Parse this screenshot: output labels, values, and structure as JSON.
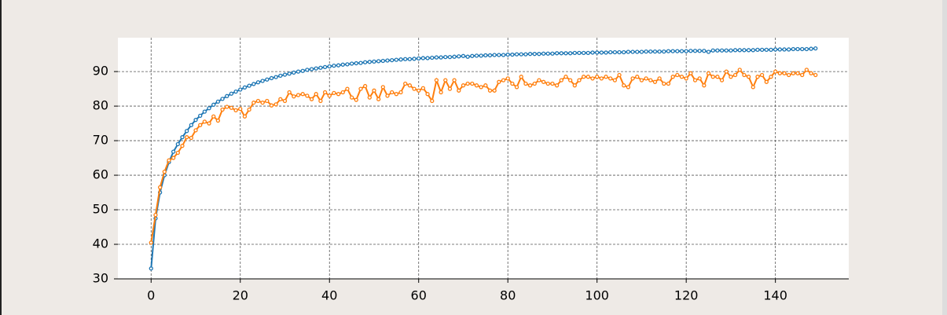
{
  "chart_data": {
    "type": "line",
    "x": [
      0,
      1,
      2,
      3,
      4,
      5,
      6,
      7,
      8,
      9,
      10,
      11,
      12,
      13,
      14,
      15,
      16,
      17,
      18,
      19,
      20,
      21,
      22,
      23,
      24,
      25,
      26,
      27,
      28,
      29,
      30,
      31,
      32,
      33,
      34,
      35,
      36,
      37,
      38,
      39,
      40,
      41,
      42,
      43,
      44,
      45,
      46,
      47,
      48,
      49,
      50,
      51,
      52,
      53,
      54,
      55,
      56,
      57,
      58,
      59,
      60,
      61,
      62,
      63,
      64,
      65,
      66,
      67,
      68,
      69,
      70,
      71,
      72,
      73,
      74,
      75,
      76,
      77,
      78,
      79,
      80,
      81,
      82,
      83,
      84,
      85,
      86,
      87,
      88,
      89,
      90,
      91,
      92,
      93,
      94,
      95,
      96,
      97,
      98,
      99,
      100,
      101,
      102,
      103,
      104,
      105,
      106,
      107,
      108,
      109,
      110,
      111,
      112,
      113,
      114,
      115,
      116,
      117,
      118,
      119,
      120,
      121,
      122,
      123,
      124,
      125,
      126,
      127,
      128,
      129,
      130,
      131,
      132,
      133,
      134,
      135,
      136,
      137,
      138,
      139,
      140,
      141,
      142,
      143,
      144,
      145,
      146,
      147,
      148,
      149
    ],
    "series": [
      {
        "color": "#1f77b4",
        "values": [
          33.0,
          47.5,
          55.0,
          60.0,
          63.8,
          66.8,
          69.0,
          71.0,
          72.8,
          74.5,
          76.0,
          77.2,
          78.4,
          79.4,
          80.4,
          81.3,
          82.1,
          82.9,
          83.6,
          84.2,
          84.8,
          85.4,
          85.9,
          86.4,
          86.9,
          87.3,
          87.7,
          88.1,
          88.4,
          88.8,
          89.1,
          89.4,
          89.7,
          90.0,
          90.2,
          90.5,
          90.7,
          90.9,
          91.1,
          91.3,
          91.5,
          91.7,
          91.8,
          92.0,
          92.1,
          92.3,
          92.4,
          92.5,
          92.7,
          92.8,
          92.9,
          93.0,
          93.1,
          93.2,
          93.3,
          93.4,
          93.5,
          93.6,
          93.6,
          93.7,
          93.8,
          93.9,
          93.9,
          94.0,
          94.1,
          94.1,
          94.2,
          94.2,
          94.3,
          94.4,
          94.5,
          94.3,
          94.5,
          94.6,
          94.6,
          94.7,
          94.7,
          94.8,
          94.8,
          94.8,
          94.9,
          94.9,
          95.0,
          95.0,
          95.0,
          95.1,
          95.1,
          95.1,
          95.2,
          95.2,
          95.2,
          95.3,
          95.3,
          95.3,
          95.3,
          95.4,
          95.4,
          95.4,
          95.4,
          95.5,
          95.5,
          95.5,
          95.5,
          95.6,
          95.6,
          95.6,
          95.6,
          95.7,
          95.7,
          95.7,
          95.7,
          95.8,
          95.8,
          95.8,
          95.8,
          95.8,
          95.9,
          95.9,
          95.9,
          95.9,
          95.9,
          96.0,
          96.0,
          96.0,
          96.0,
          95.7,
          96.1,
          96.1,
          96.1,
          96.1,
          96.1,
          96.2,
          96.2,
          96.2,
          96.2,
          96.2,
          96.3,
          96.3,
          96.3,
          96.3,
          96.4,
          96.4,
          96.4,
          96.4,
          96.5,
          96.5,
          96.5,
          96.5,
          96.6,
          96.7
        ]
      },
      {
        "color": "#ff7f0e",
        "values": [
          40.5,
          48.5,
          56.5,
          61,
          64.3,
          65,
          66.5,
          68.5,
          71,
          70.8,
          73,
          74.5,
          75.5,
          75,
          77,
          75.8,
          79,
          79.8,
          79.5,
          78.8,
          79.2,
          77,
          79,
          81,
          81.5,
          81,
          81.5,
          80.2,
          80.5,
          82,
          81.5,
          84,
          82.8,
          83.2,
          83.5,
          83,
          82,
          83.5,
          81.5,
          84,
          83,
          83.8,
          83.5,
          84,
          85,
          82.5,
          81.8,
          85,
          85.8,
          82.5,
          84.5,
          82,
          85.5,
          83,
          84,
          83.5,
          84,
          86.5,
          86,
          85,
          84.5,
          85.2,
          83.5,
          81.5,
          87.5,
          84,
          87.5,
          85,
          87.5,
          84.5,
          86,
          86.5,
          86.5,
          86,
          85.5,
          86,
          84.5,
          84.5,
          87,
          87.5,
          88,
          86.5,
          85.5,
          88.5,
          86.5,
          86,
          86.5,
          87.5,
          87,
          86.5,
          86.5,
          86,
          87.5,
          88.5,
          87.5,
          86,
          87.5,
          88.5,
          88.5,
          88,
          88.5,
          88,
          88.5,
          88,
          87.5,
          89,
          86,
          85.5,
          88,
          88.5,
          87.5,
          88,
          87.5,
          87,
          88,
          86.5,
          86.5,
          88.5,
          89,
          88.5,
          88,
          89.5,
          87.5,
          88,
          86,
          89.5,
          88.5,
          88.5,
          87.5,
          90,
          88.5,
          89,
          90.5,
          89,
          88.5,
          85.5,
          88.5,
          89,
          87,
          88.5,
          90,
          89.5,
          89.5,
          89,
          89.5,
          89.5,
          89,
          90.5,
          89.5,
          89
        ]
      }
    ],
    "xlim": [
      -7.45,
      156.45
    ],
    "xticks": [
      0,
      20,
      40,
      60,
      80,
      100,
      120,
      140
    ],
    "ylim": [
      30,
      99.8
    ],
    "yticks": [
      30,
      40,
      50,
      60,
      70,
      80,
      90
    ],
    "grid": true
  }
}
